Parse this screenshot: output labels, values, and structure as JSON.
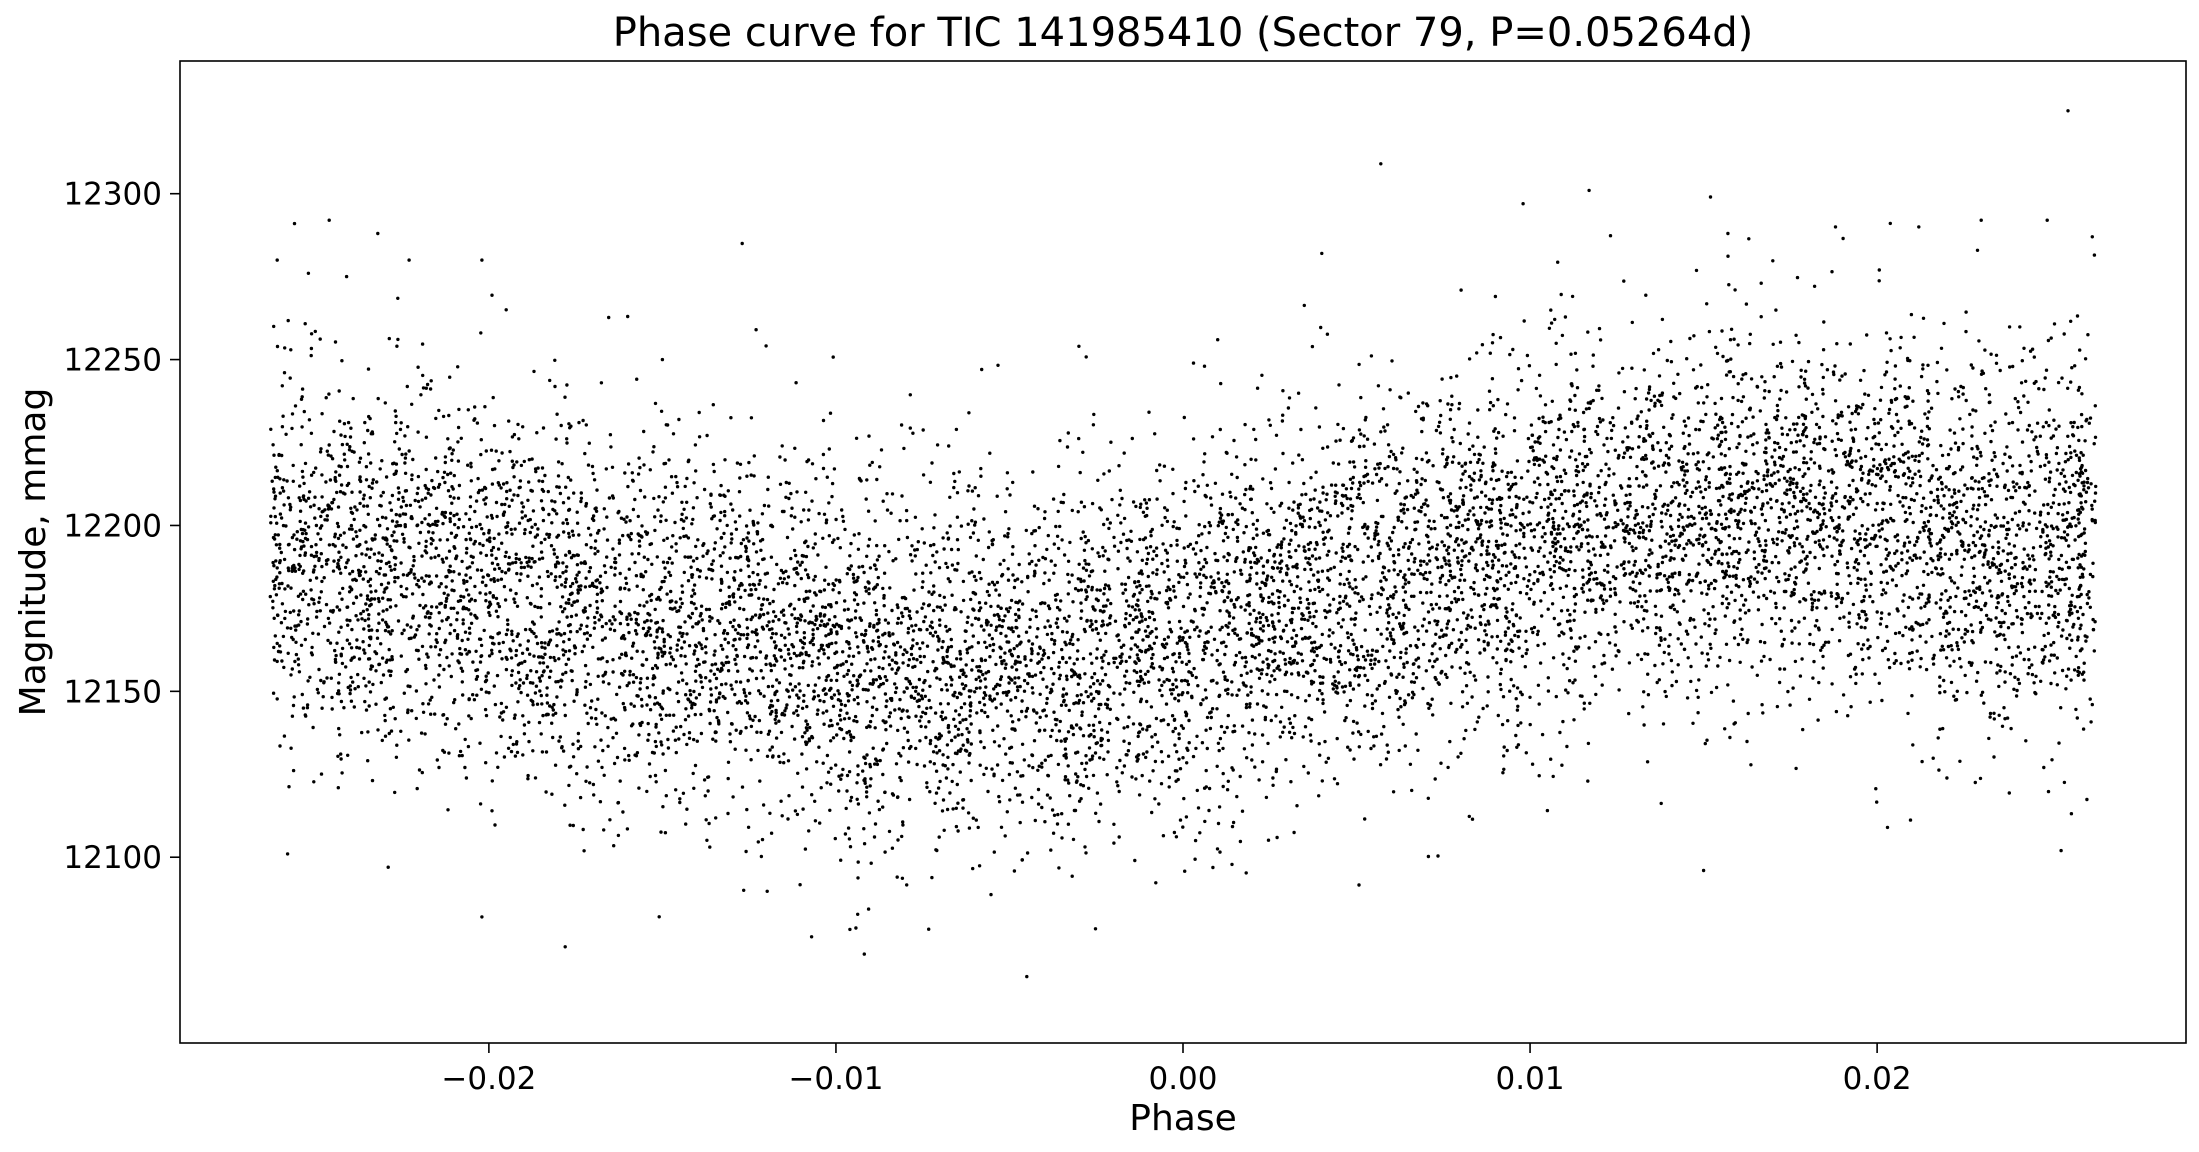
{
  "chart_data": {
    "type": "scatter",
    "title": "Phase curve for TIC 141985410 (Sector 79, P=0.05264d)",
    "xlabel": "Phase",
    "ylabel": "Magnitude, mmag",
    "xlim": [
      -0.0289,
      0.0289
    ],
    "ylim": [
      12044,
      12340
    ],
    "x_ticks": [
      -0.02,
      -0.01,
      0.0,
      0.01,
      0.02
    ],
    "x_tick_labels": [
      "−0.02",
      "−0.01",
      "0.00",
      "0.01",
      "0.02"
    ],
    "y_ticks": [
      12100,
      12150,
      12200,
      12250,
      12300
    ],
    "y_tick_labels": [
      "12100",
      "12150",
      "12200",
      "12250",
      "12300"
    ],
    "grid": false,
    "legend": "none",
    "marker_color": "#000000",
    "series": [
      {
        "points_sample": [
          [
            -0.0262,
            12260
          ],
          [
            -0.0261,
            12280
          ],
          [
            -0.0258,
            12101
          ],
          [
            -0.0256,
            12291
          ],
          [
            -0.0252,
            12276
          ],
          [
            -0.0246,
            12292
          ],
          [
            -0.0241,
            12275
          ],
          [
            -0.0232,
            12288
          ],
          [
            -0.0229,
            12097
          ],
          [
            -0.0223,
            12280
          ],
          [
            -0.0202,
            12082
          ],
          [
            -0.0202,
            12280
          ],
          [
            -0.0195,
            12265
          ],
          [
            -0.0178,
            12073
          ],
          [
            -0.0127,
            12285
          ],
          [
            -0.0107,
            12076
          ],
          [
            -0.0045,
            12064
          ],
          [
            0.0057,
            12309
          ],
          [
            0.0098,
            12297
          ],
          [
            0.0117,
            12301
          ],
          [
            0.0152,
            12299
          ],
          [
            0.015,
            12096
          ],
          [
            0.0157,
            12288
          ],
          [
            0.0188,
            12290
          ],
          [
            0.0203,
            12109
          ],
          [
            0.0212,
            12290
          ],
          [
            0.023,
            12292
          ],
          [
            0.0249,
            12292
          ],
          [
            0.0253,
            12102
          ],
          [
            0.0255,
            12325
          ],
          [
            0.0262,
            12287
          ],
          [
            0.0262,
            12146
          ],
          [
            -0.016,
            12263
          ],
          [
            -0.015,
            12250
          ],
          [
            -0.0123,
            12259
          ],
          [
            -0.0058,
            12247
          ],
          [
            -0.003,
            12254
          ],
          [
            0.001,
            12256
          ],
          [
            0.004,
            12282
          ],
          [
            0.009,
            12269
          ]
        ],
        "trend": {
          "phase": [
            -0.0263,
            -0.022,
            -0.018,
            -0.014,
            -0.01,
            -0.006,
            -0.002,
            0.0,
            0.004,
            0.008,
            0.012,
            0.016,
            0.02,
            0.024,
            0.0263
          ],
          "mean_mag": [
            12190,
            12184,
            12176,
            12168,
            12161,
            12158,
            12162,
            12168,
            12178,
            12190,
            12198,
            12203,
            12202,
            12197,
            12192
          ]
        },
        "scatter_sigma_mmag": 28,
        "n_points": 10000
      }
    ]
  }
}
